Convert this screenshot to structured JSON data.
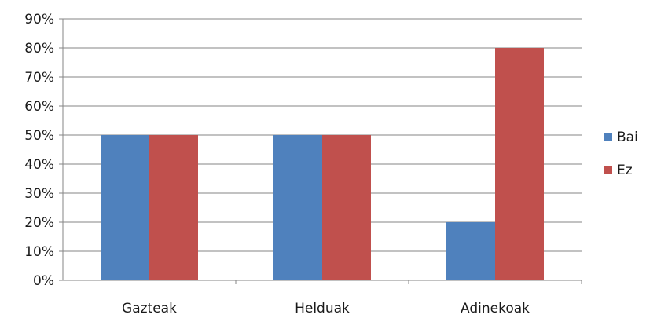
{
  "chart_data": {
    "type": "bar",
    "categories": [
      "Gazteak",
      "Helduak",
      "Adinekoak"
    ],
    "series": [
      {
        "name": "Bai",
        "values": [
          50,
          50,
          20
        ],
        "color": "#4f81bd"
      },
      {
        "name": "Ez",
        "values": [
          50,
          50,
          80
        ],
        "color": "#c0504d"
      }
    ],
    "ylim": [
      0,
      90
    ],
    "yticks": [
      0,
      10,
      20,
      30,
      40,
      50,
      60,
      70,
      80,
      90
    ],
    "ytick_suffix": "%",
    "grid": true,
    "legend_position": "right",
    "title": "",
    "xlabel": "",
    "ylabel": ""
  }
}
